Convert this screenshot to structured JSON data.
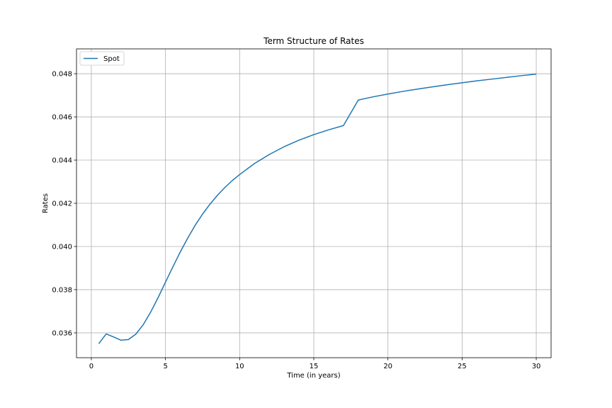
{
  "chart_data": {
    "type": "line",
    "title": "Term Structure of Rates",
    "xlabel": "Time (in years)",
    "ylabel": "Rates",
    "xlim": [
      -1,
      31
    ],
    "ylim": [
      0.03485,
      0.04915
    ],
    "xticks": [
      0,
      5,
      10,
      15,
      20,
      25,
      30
    ],
    "xtick_labels": [
      "0",
      "5",
      "10",
      "15",
      "20",
      "25",
      "30"
    ],
    "yticks": [
      0.036,
      0.038,
      0.04,
      0.042,
      0.044,
      0.046,
      0.048
    ],
    "ytick_labels": [
      "0.036",
      "0.038",
      "0.040",
      "0.042",
      "0.044",
      "0.046",
      "0.048"
    ],
    "grid": true,
    "legend_position": "top-left",
    "series": [
      {
        "name": "Spot",
        "color": "#1f77b4",
        "x": [
          0.5,
          1.0,
          1.5,
          2.0,
          2.5,
          3.0,
          3.5,
          4.0,
          4.5,
          5.0,
          5.5,
          6.0,
          6.5,
          7.0,
          7.5,
          8.0,
          8.5,
          9.0,
          9.5,
          10.0,
          11.0,
          12.0,
          13.0,
          14.0,
          15.0,
          16.0,
          17.0,
          18.0,
          19.0,
          20.0,
          21.0,
          22.0,
          23.0,
          24.0,
          25.0,
          26.0,
          27.0,
          28.0,
          29.0,
          30.0
        ],
        "y": [
          0.0355,
          0.03595,
          0.03581,
          0.03566,
          0.03569,
          0.03594,
          0.03638,
          0.03696,
          0.03763,
          0.03835,
          0.03906,
          0.03975,
          0.04039,
          0.04098,
          0.0415,
          0.04196,
          0.04237,
          0.04273,
          0.04305,
          0.04333,
          0.04384,
          0.04426,
          0.04462,
          0.04492,
          0.04518,
          0.0454,
          0.0456,
          0.04678,
          0.04693,
          0.04706,
          0.04718,
          0.04729,
          0.04739,
          0.04749,
          0.04758,
          0.04767,
          0.04775,
          0.04783,
          0.04791,
          0.04798
        ]
      }
    ]
  }
}
